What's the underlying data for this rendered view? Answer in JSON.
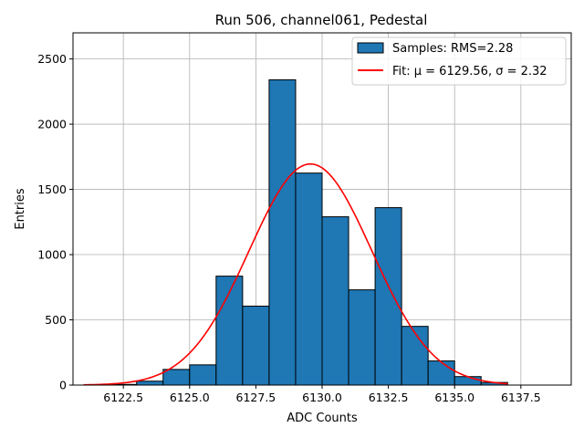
{
  "chart_data": {
    "type": "bar",
    "title": "Run 506, channel061, Pedestal",
    "xlabel": "ADC Counts",
    "ylabel": "Entries",
    "xlim": [
      6120.6,
      6139.4
    ],
    "ylim": [
      0,
      2700
    ],
    "xticks": [
      6122.5,
      6125.0,
      6127.5,
      6130.0,
      6132.5,
      6135.0,
      6137.5
    ],
    "xtick_labels": [
      "6122.5",
      "6125.0",
      "6127.5",
      "6130.0",
      "6132.5",
      "6135.0",
      "6137.5"
    ],
    "yticks": [
      0,
      500,
      1000,
      1500,
      2000,
      2500
    ],
    "ytick_labels": [
      "0",
      "500",
      "1000",
      "1500",
      "2000",
      "2500"
    ],
    "grid": true,
    "legend_position": "top-right",
    "histogram": {
      "name": "Samples: RMS=2.28",
      "color": "#1f77b4",
      "edge_color": "#000000",
      "bins": [
        {
          "x0": 6122,
          "x1": 6123,
          "value": 5
        },
        {
          "x0": 6123,
          "x1": 6124,
          "value": 30
        },
        {
          "x0": 6124,
          "x1": 6125,
          "value": 120
        },
        {
          "x0": 6125,
          "x1": 6126,
          "value": 155
        },
        {
          "x0": 6126,
          "x1": 6127,
          "value": 835
        },
        {
          "x0": 6127,
          "x1": 6128,
          "value": 605
        },
        {
          "x0": 6128,
          "x1": 6129,
          "value": 2340
        },
        {
          "x0": 6129,
          "x1": 6130,
          "value": 1625
        },
        {
          "x0": 6130,
          "x1": 6131,
          "value": 1290
        },
        {
          "x0": 6131,
          "x1": 6132,
          "value": 730
        },
        {
          "x0": 6132,
          "x1": 6133,
          "value": 1360
        },
        {
          "x0": 6133,
          "x1": 6134,
          "value": 450
        },
        {
          "x0": 6134,
          "x1": 6135,
          "value": 185
        },
        {
          "x0": 6135,
          "x1": 6136,
          "value": 65
        },
        {
          "x0": 6136,
          "x1": 6137,
          "value": 20
        }
      ]
    },
    "fit": {
      "name": "Fit: μ = 6129.56, σ = 2.32",
      "color": "#ff0000",
      "type": "gaussian",
      "mu": 6129.56,
      "sigma": 2.32,
      "amplitude": 1695,
      "x_range": [
        6121,
        6137
      ]
    }
  }
}
